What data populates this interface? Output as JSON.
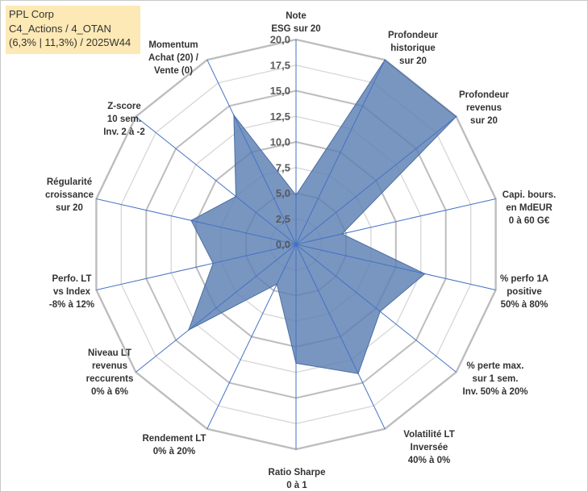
{
  "header": {
    "line1": "PPL Corp",
    "line2": "C4_Actions / 4_OTAN",
    "line3": "(6,3% | 11,3%) / 2025W44"
  },
  "chart_data": {
    "type": "radar",
    "rmin": 0,
    "rmax": 20,
    "tick_step": 2.5,
    "tick_labels": [
      "0,0",
      "2,5",
      "5,0",
      "7,5",
      "10,0",
      "12,5",
      "15,0",
      "17,5",
      "20,0"
    ],
    "axes": [
      {
        "label": [
          "Note",
          "ESG sur 20"
        ],
        "value": 4.8
      },
      {
        "label": [
          "Profondeur",
          "historique",
          "sur 20"
        ],
        "value": 20.0
      },
      {
        "label": [
          "Profondeur",
          "revenus",
          "sur 20"
        ],
        "value": 20.0
      },
      {
        "label": [
          "Capi. bours.",
          "en MdEUR",
          "0 à 60 G€"
        ],
        "value": 4.6
      },
      {
        "label": [
          "% perfo 1A",
          "positive",
          "50% à 80%"
        ],
        "value": 12.9
      },
      {
        "label": [
          "% perte max.",
          "sur 1 sem.",
          "Inv. 50% à 20%"
        ],
        "value": 10.5
      },
      {
        "label": [
          "Volatilité LT",
          "Inversée",
          "40% à 0%"
        ],
        "value": 14.0
      },
      {
        "label": [
          "Ratio Sharpe",
          "0 à 1"
        ],
        "value": 11.6
      },
      {
        "label": [
          "Rendement LT",
          "0% à 20%"
        ],
        "value": 4.3
      },
      {
        "label": [
          "Niveau LT",
          "revenus",
          "reccurents",
          "0% à 6%"
        ],
        "value": 13.4
      },
      {
        "label": [
          "Perfo. LT",
          "vs Index",
          "-8% à 12%"
        ],
        "value": 8.3
      },
      {
        "label": [
          "Régularité",
          "croissance",
          "sur 20"
        ],
        "value": 10.5
      },
      {
        "label": [
          "Z-score",
          "10 sem.",
          "Inv. 2 à -2"
        ],
        "value": 7.5
      },
      {
        "label": [
          "Momentum",
          "Achat (20) /",
          "Vente (0)"
        ],
        "value": 14.0
      }
    ],
    "colors": {
      "fill": "#5b7fb3",
      "stroke": "#4a6ea3",
      "grid": "#c0c0c0",
      "axis": "#4472c4",
      "text": "#333333",
      "tick_text": "#595959"
    }
  }
}
